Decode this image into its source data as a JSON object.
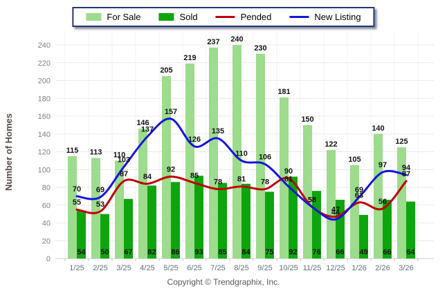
{
  "footer": {
    "copyright": "Copyright © Trendgraphix, Inc."
  },
  "chart_data": {
    "type": "combo",
    "categories": [
      "1/25",
      "2/25",
      "3/25",
      "4/25",
      "5/25",
      "6/25",
      "7/25",
      "8/25",
      "9/25",
      "10/25",
      "11/25",
      "12/25",
      "1/26",
      "2/26",
      "3/26"
    ],
    "series": [
      {
        "name": "For Sale",
        "kind": "bar",
        "color": "#9ddb8d",
        "values": [
          115,
          113,
          110,
          146,
          205,
          219,
          237,
          240,
          230,
          181,
          150,
          122,
          105,
          140,
          125
        ]
      },
      {
        "name": "Sold",
        "kind": "bar",
        "color": "#0da50d",
        "values": [
          54,
          50,
          67,
          82,
          86,
          93,
          85,
          84,
          75,
          92,
          76,
          66,
          49,
          66,
          64
        ]
      },
      {
        "name": "Pended",
        "kind": "line",
        "color": "#c00000",
        "values": [
          55,
          53,
          87,
          84,
          92,
          85,
          78,
          81,
          78,
          90,
          58,
          47,
          63,
          56,
          87
        ]
      },
      {
        "name": "New Listing",
        "kind": "line",
        "color": "#1414e0",
        "values": [
          70,
          69,
          103,
          137,
          157,
          126,
          135,
          110,
          106,
          81,
          58,
          44,
          69,
          97,
          94
        ]
      }
    ],
    "title": "",
    "xlabel": "",
    "ylabel": "Number of Homes",
    "ylim": [
      0,
      240
    ],
    "ytick_step": 20,
    "grid": true,
    "value_labels": true,
    "legend_position": "top-center"
  }
}
